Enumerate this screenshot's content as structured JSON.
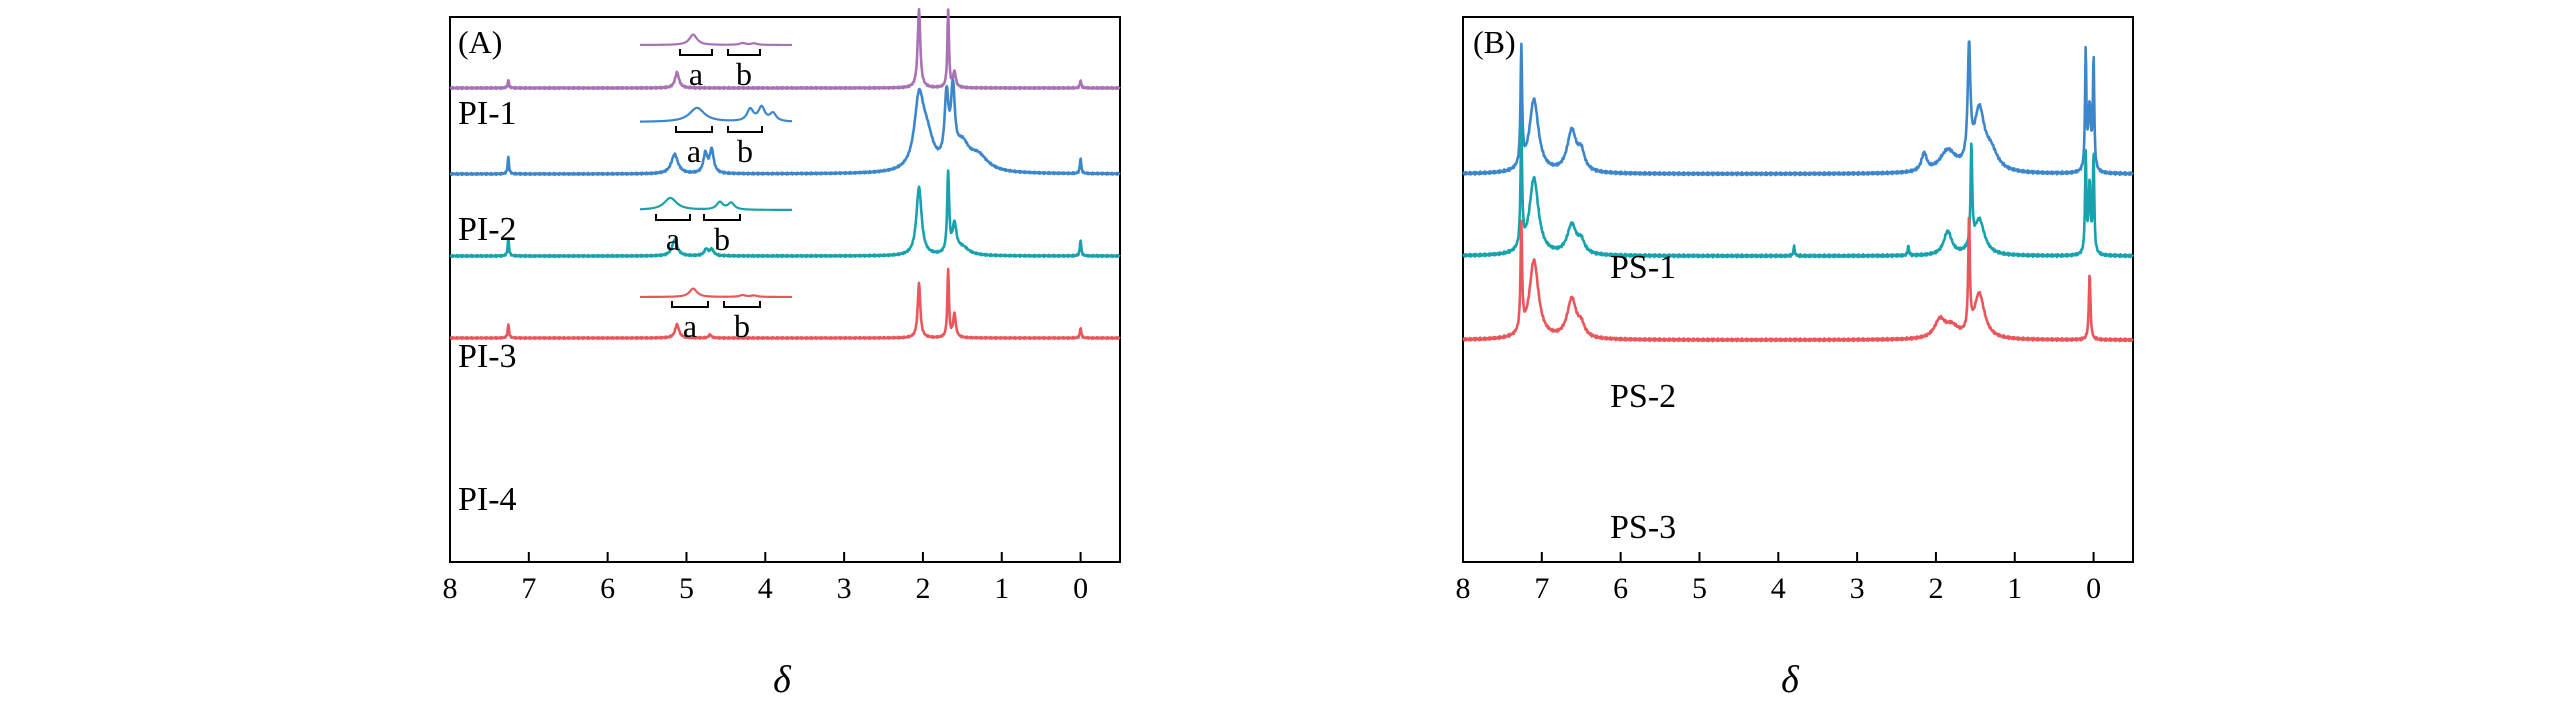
{
  "chart_data": [
    {
      "type": "line",
      "panel_label": "(A)",
      "xlabel": "δ",
      "xlim": [
        8,
        -0.5
      ],
      "x_ticks": [
        8,
        7,
        6,
        5,
        4,
        3,
        2,
        1,
        0
      ],
      "tick_labels": [
        "8",
        "7",
        "6",
        "5",
        "4",
        "3",
        "2",
        "1",
        "0"
      ],
      "series": [
        {
          "name": "PI-1",
          "color": "#A872B4",
          "peaks": [
            [
              5.12,
              0.2,
              0.03
            ],
            [
              2.05,
              1.0,
              0.02
            ],
            [
              1.68,
              1.0,
              0.012
            ],
            [
              1.6,
              0.2,
              0.02
            ],
            [
              7.26,
              0.1,
              0.01
            ],
            [
              0.0,
              0.1,
              0.01
            ]
          ],
          "inset": {
            "bracket_labels": [
              "a",
              "b"
            ],
            "peaks": [
              [
                4.9,
                0.7,
                0.06
              ],
              [
                4.25,
                0.12,
                0.05
              ],
              [
                4.1,
                0.1,
                0.05
              ]
            ]
          }
        },
        {
          "name": "PI-2",
          "color": "#3C86CB",
          "peaks": [
            [
              7.26,
              0.22,
              0.01
            ],
            [
              5.15,
              0.25,
              0.05
            ],
            [
              4.76,
              0.25,
              0.03
            ],
            [
              4.68,
              0.3,
              0.03
            ],
            [
              2.05,
              0.85,
              0.07
            ],
            [
              1.95,
              0.4,
              0.1
            ],
            [
              1.7,
              0.85,
              0.03
            ],
            [
              1.62,
              0.9,
              0.03
            ],
            [
              1.5,
              0.3,
              0.1
            ],
            [
              1.3,
              0.2,
              0.15
            ],
            [
              0.0,
              0.2,
              0.01
            ]
          ],
          "inset": {
            "bracket_labels": [
              "a",
              "b"
            ],
            "peaks": [
              [
                4.85,
                0.7,
                0.12
              ],
              [
                4.15,
                0.6,
                0.05
              ],
              [
                4.0,
                0.7,
                0.05
              ],
              [
                3.85,
                0.4,
                0.05
              ]
            ]
          }
        },
        {
          "name": "PI-3",
          "color": "#17A2AE",
          "peaks": [
            [
              7.26,
              0.22,
              0.01
            ],
            [
              5.15,
              0.2,
              0.04
            ],
            [
              4.75,
              0.08,
              0.03
            ],
            [
              4.68,
              0.08,
              0.03
            ],
            [
              2.05,
              0.85,
              0.04
            ],
            [
              1.68,
              1.0,
              0.015
            ],
            [
              1.6,
              0.35,
              0.03
            ],
            [
              1.5,
              0.1,
              0.1
            ],
            [
              0.0,
              0.2,
              0.01
            ]
          ],
          "inset": {
            "bracket_labels": [
              "a",
              "b"
            ],
            "peaks": [
              [
                5.2,
                0.8,
                0.1
              ],
              [
                4.55,
                0.5,
                0.05
              ],
              [
                4.4,
                0.45,
                0.05
              ]
            ]
          }
        },
        {
          "name": "PI-4",
          "color": "#E9575C",
          "peaks": [
            [
              7.26,
              0.2,
              0.01
            ],
            [
              5.12,
              0.2,
              0.03
            ],
            [
              4.7,
              0.05,
              0.02
            ],
            [
              2.05,
              0.8,
              0.02
            ],
            [
              1.68,
              1.0,
              0.012
            ],
            [
              1.6,
              0.35,
              0.02
            ],
            [
              0.0,
              0.15,
              0.01
            ]
          ],
          "inset": {
            "bracket_labels": [
              "a",
              "b"
            ],
            "peaks": [
              [
                4.9,
                0.7,
                0.06
              ],
              [
                4.25,
                0.15,
                0.05
              ],
              [
                4.1,
                0.12,
                0.05
              ]
            ]
          }
        }
      ]
    },
    {
      "type": "line",
      "panel_label": "(B)",
      "xlabel": "δ",
      "xlim": [
        8,
        -0.5
      ],
      "x_ticks": [
        8,
        7,
        6,
        5,
        4,
        3,
        2,
        1,
        0
      ],
      "tick_labels": [
        "8",
        "7",
        "6",
        "5",
        "4",
        "3",
        "2",
        "1",
        "0"
      ],
      "series": [
        {
          "name": "PS-1",
          "color": "#3C86CB",
          "peaks": [
            [
              7.26,
              1.0,
              0.012
            ],
            [
              7.1,
              0.62,
              0.07
            ],
            [
              6.62,
              0.35,
              0.07
            ],
            [
              6.5,
              0.15,
              0.05
            ],
            [
              2.15,
              0.15,
              0.04
            ],
            [
              1.85,
              0.18,
              0.12
            ],
            [
              1.58,
              0.95,
              0.02
            ],
            [
              1.45,
              0.5,
              0.08
            ],
            [
              1.3,
              0.15,
              0.1
            ],
            [
              0.1,
              1.0,
              0.01
            ],
            [
              0.05,
              0.55,
              0.02
            ],
            [
              0.0,
              0.95,
              0.01
            ]
          ]
        },
        {
          "name": "PS-2",
          "color": "#17A2AE",
          "peaks": [
            [
              7.26,
              1.0,
              0.012
            ],
            [
              7.1,
              0.65,
              0.07
            ],
            [
              6.62,
              0.25,
              0.07
            ],
            [
              6.5,
              0.1,
              0.05
            ],
            [
              3.8,
              0.08,
              0.01
            ],
            [
              2.35,
              0.08,
              0.01
            ],
            [
              1.85,
              0.2,
              0.06
            ],
            [
              1.55,
              0.85,
              0.012
            ],
            [
              1.45,
              0.3,
              0.08
            ],
            [
              0.1,
              0.85,
              0.01
            ],
            [
              0.05,
              0.6,
              0.015
            ],
            [
              0.0,
              0.85,
              0.01
            ]
          ]
        },
        {
          "name": "PS-3",
          "color": "#E9575C",
          "peaks": [
            [
              7.26,
              0.95,
              0.012
            ],
            [
              7.1,
              0.7,
              0.07
            ],
            [
              6.62,
              0.35,
              0.07
            ],
            [
              6.5,
              0.1,
              0.05
            ],
            [
              1.95,
              0.16,
              0.08
            ],
            [
              1.8,
              0.1,
              0.1
            ],
            [
              1.58,
              1.0,
              0.012
            ],
            [
              1.45,
              0.4,
              0.08
            ],
            [
              0.05,
              0.6,
              0.012
            ]
          ]
        }
      ]
    }
  ]
}
